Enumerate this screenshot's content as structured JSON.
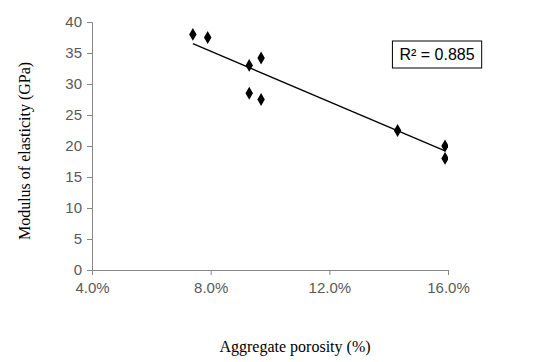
{
  "chart_data": {
    "type": "scatter",
    "x_label": "Aggregate porosity (%)",
    "y_label": "Modulus of elasticity (GPa)",
    "annotations": [
      "R² = 0.885"
    ],
    "series": [
      {
        "x": [
          7.4,
          7.9,
          9.3,
          9.7,
          9.3,
          9.7,
          14.3,
          15.9,
          15.9
        ],
        "values": [
          38,
          37.5,
          33,
          34.2,
          28.5,
          27.5,
          22.5,
          20,
          18
        ],
        "color": "#000000",
        "marker": "diamond"
      }
    ],
    "trendline": {
      "x": [
        7.4,
        15.9
      ],
      "values": [
        36.5,
        19.2
      ],
      "color": "#000000",
      "line_style": "solid"
    },
    "xlim": [
      4,
      16
    ],
    "xticks": [
      {
        "value": 4,
        "label": "4.0%"
      },
      {
        "value": 8,
        "label": "8.0%"
      },
      {
        "value": 12,
        "label": "12.0%"
      },
      {
        "value": 16,
        "label": "16.0%"
      }
    ],
    "ylim": [
      0,
      40
    ],
    "yticks": [
      0,
      5,
      10,
      15,
      20,
      25,
      30,
      35,
      40
    ],
    "grid": false
  }
}
